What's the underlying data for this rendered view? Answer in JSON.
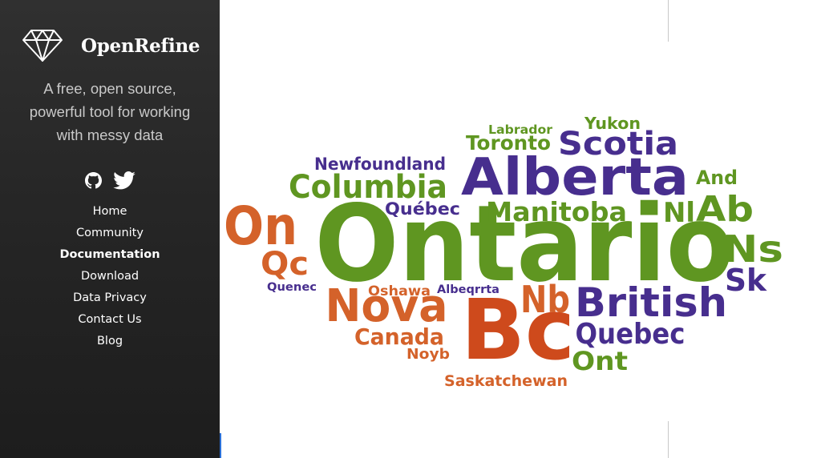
{
  "sidebar": {
    "brand_name": "OpenRefine",
    "logo_icon": "diamond-icon",
    "tagline": [
      "A free, open source,",
      "powerful tool for working",
      "with messy data"
    ],
    "social": [
      {
        "icon": "github-icon"
      },
      {
        "icon": "twitter-icon"
      }
    ],
    "nav": [
      {
        "label": "Home"
      },
      {
        "label": "Community"
      },
      {
        "label": "Documentation",
        "active": true
      },
      {
        "label": "Download"
      },
      {
        "label": "Data Privacy"
      },
      {
        "label": "Contact Us"
      },
      {
        "label": "Blog"
      }
    ]
  },
  "word_cloud": {
    "colors": {
      "green": "#5f9621",
      "purple": "#472e8e",
      "orange": "#d4622a",
      "dark_orange": "#ce4a1c"
    },
    "words": [
      {
        "text": "Ontario",
        "color": "#5f9621"
      },
      {
        "text": "Alberta",
        "color": "#472e8e"
      },
      {
        "text": "Bc",
        "color": "#ce4a1c"
      },
      {
        "text": "Nova",
        "color": "#d4622a"
      },
      {
        "text": "British",
        "color": "#472e8e"
      },
      {
        "text": "Scotia",
        "color": "#472e8e"
      },
      {
        "text": "Columbia",
        "color": "#5f9621"
      },
      {
        "text": "Manitoba",
        "color": "#5f9621"
      },
      {
        "text": "On",
        "color": "#d4622a"
      },
      {
        "text": "Ab",
        "color": "#5f9621"
      },
      {
        "text": "Ns",
        "color": "#5f9621"
      },
      {
        "text": "Nb",
        "color": "#d4622a"
      },
      {
        "text": "Quebec",
        "color": "#472e8e"
      },
      {
        "text": "Qc",
        "color": "#d4622a"
      },
      {
        "text": "Sk",
        "color": "#472e8e"
      },
      {
        "text": "Nl",
        "color": "#5f9621"
      },
      {
        "text": "Canada",
        "color": "#d4622a"
      },
      {
        "text": "Ont",
        "color": "#5f9621"
      },
      {
        "text": "Toronto",
        "color": "#5f9621"
      },
      {
        "text": "Newfoundland",
        "color": "#472e8e"
      },
      {
        "text": "Québec",
        "color": "#472e8e"
      },
      {
        "text": "And",
        "color": "#5f9621"
      },
      {
        "text": "Yukon",
        "color": "#5f9621"
      },
      {
        "text": "Labrador",
        "color": "#5f9621"
      },
      {
        "text": "Saskatchewan",
        "color": "#d4622a"
      },
      {
        "text": "Oshawa",
        "color": "#d4622a"
      },
      {
        "text": "Albeqrrta",
        "color": "#472e8e"
      },
      {
        "text": "Quenec",
        "color": "#472e8e"
      },
      {
        "text": "Noyb",
        "color": "#d4622a"
      }
    ]
  }
}
